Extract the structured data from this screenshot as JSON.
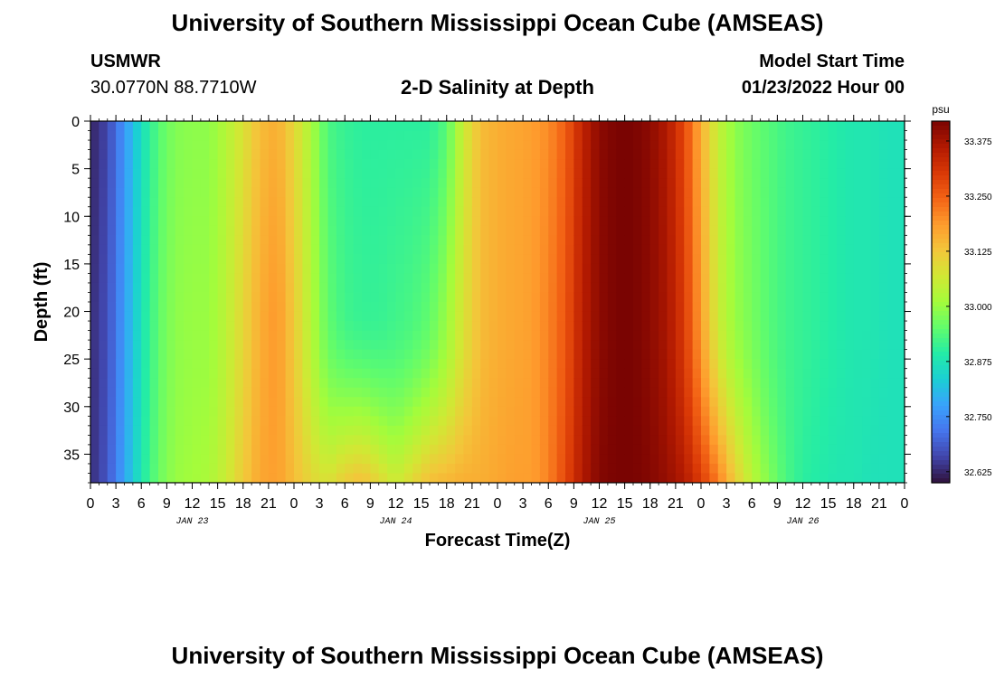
{
  "header": {
    "title": "University of Southern Mississippi Ocean Cube (AMSEAS)",
    "station": "USMWR",
    "coords": "30.0770N  88.7710W",
    "subtitle": "2-D Salinity at Depth",
    "model_label": "Model Start Time",
    "model_time": "01/23/2022 Hour 00"
  },
  "footer": {
    "title": "University of Southern Mississippi Ocean Cube (AMSEAS)"
  },
  "chart_data": {
    "type": "heatmap",
    "title": "2-D Salinity at Depth",
    "xlabel": "Forecast Time(Z)",
    "ylabel": "Depth (ft)",
    "x_range_hours": [
      0,
      96
    ],
    "y_range_ft": [
      0,
      38
    ],
    "x_tick_labels": [
      "0",
      "3",
      "6",
      "9",
      "12",
      "15",
      "18",
      "21",
      "0",
      "3",
      "6",
      "9",
      "12",
      "15",
      "18",
      "21",
      "0",
      "3",
      "6",
      "9",
      "12",
      "15",
      "18",
      "21",
      "0",
      "3",
      "6",
      "9",
      "12",
      "15",
      "18",
      "21",
      "0"
    ],
    "y_ticks": [
      0,
      5,
      10,
      15,
      20,
      25,
      30,
      35
    ],
    "day_labels": [
      {
        "text": "JAN 23",
        "hour": 12
      },
      {
        "text": "JAN 24",
        "hour": 36
      },
      {
        "text": "JAN 25",
        "hour": 60
      },
      {
        "text": "JAN 26",
        "hour": 84
      }
    ],
    "colorbar": {
      "unit": "psu",
      "range": [
        32.6,
        33.42
      ],
      "ticks": [
        "33.375",
        "33.250",
        "33.125",
        "33.000",
        "32.875",
        "32.750",
        "32.625"
      ]
    },
    "palette": [
      "#30123b",
      "#4145ab",
      "#4675ed",
      "#39a2fc",
      "#1bcfd4",
      "#24eca6",
      "#61fc6c",
      "#a4fc3b",
      "#d1e834",
      "#f3c63a",
      "#fe9b2d",
      "#f36315",
      "#d93806",
      "#b11901",
      "#7a0402"
    ],
    "salinity_profile": {
      "hours": [
        0,
        2,
        4,
        6,
        8,
        10,
        12,
        14,
        16,
        18,
        20,
        22,
        24,
        26,
        28,
        30,
        32,
        34,
        36,
        38,
        40,
        42,
        44,
        46,
        48,
        50,
        52,
        54,
        56,
        58,
        60,
        62,
        64,
        66,
        68,
        70,
        72,
        74,
        76,
        78,
        80,
        82,
        84,
        86,
        88,
        90,
        92,
        94,
        96
      ],
      "surface": [
        32.62,
        32.66,
        32.76,
        32.86,
        32.94,
        32.98,
        32.99,
        32.99,
        33.03,
        33.08,
        33.14,
        33.16,
        33.1,
        33.02,
        32.93,
        32.91,
        32.9,
        32.9,
        32.9,
        32.9,
        32.9,
        32.94,
        33.06,
        33.14,
        33.16,
        33.17,
        33.18,
        33.2,
        33.25,
        33.34,
        33.4,
        33.42,
        33.42,
        33.4,
        33.36,
        33.28,
        33.16,
        33.05,
        32.99,
        32.96,
        32.94,
        32.92,
        32.91,
        32.9,
        32.89,
        32.88,
        32.88,
        32.87,
        32.87
      ],
      "mid_20ft": [
        32.63,
        32.67,
        32.77,
        32.87,
        32.95,
        32.99,
        33.0,
        33.0,
        33.04,
        33.1,
        33.16,
        33.19,
        33.12,
        33.03,
        32.95,
        32.92,
        32.91,
        32.91,
        32.92,
        32.93,
        32.95,
        33.0,
        33.08,
        33.14,
        33.16,
        33.17,
        33.18,
        33.21,
        33.26,
        33.35,
        33.4,
        33.42,
        33.42,
        33.4,
        33.37,
        33.3,
        33.18,
        33.06,
        33.0,
        32.97,
        32.94,
        32.92,
        32.91,
        32.9,
        32.89,
        32.88,
        32.88,
        32.87,
        32.87
      ],
      "bottom": [
        32.63,
        32.68,
        32.78,
        32.88,
        32.96,
        33.0,
        33.01,
        33.02,
        33.06,
        33.12,
        33.17,
        33.18,
        33.14,
        33.1,
        33.08,
        33.12,
        33.14,
        33.1,
        33.06,
        33.1,
        33.14,
        33.15,
        33.16,
        33.16,
        33.17,
        33.18,
        33.18,
        33.21,
        33.28,
        33.36,
        33.41,
        33.42,
        33.42,
        33.41,
        33.39,
        33.36,
        33.3,
        33.22,
        33.12,
        33.04,
        32.98,
        32.93,
        32.9,
        32.89,
        32.88,
        32.88,
        32.87,
        32.87,
        32.87
      ]
    }
  }
}
